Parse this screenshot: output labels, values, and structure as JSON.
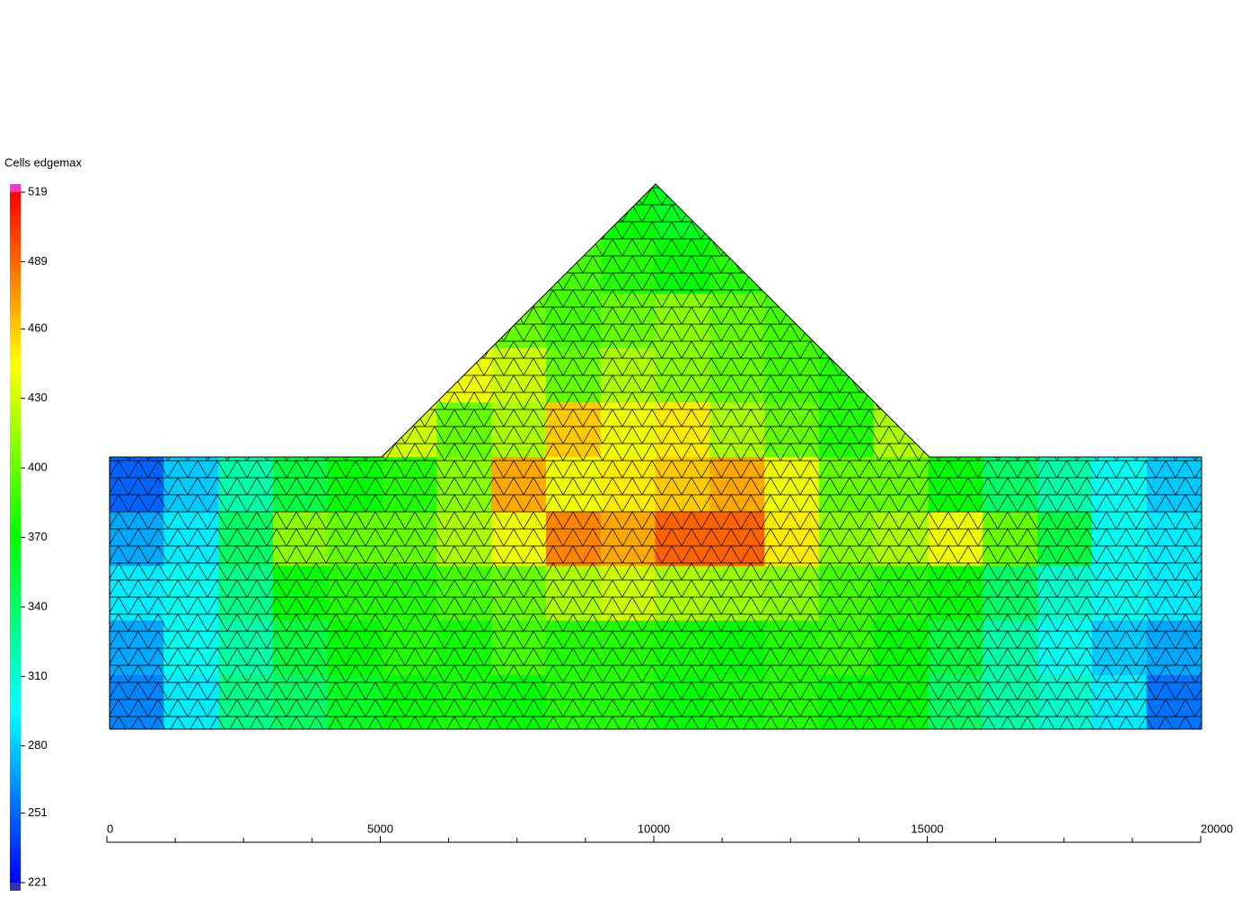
{
  "chart_data": {
    "type": "mesh-field",
    "colorbar_title": "Cells edgemax",
    "clim": [
      221,
      519
    ],
    "colorbar_ticks": [
      221,
      251,
      280,
      310,
      340,
      370,
      400,
      430,
      460,
      489,
      519
    ],
    "xlim": [
      0,
      20000
    ],
    "xticks": [
      0,
      5000,
      10000,
      15000,
      20000
    ],
    "xminorticks": [
      1250,
      2500,
      3750,
      6250,
      7500,
      8750,
      11250,
      12500,
      13750,
      16250,
      17500,
      18750
    ],
    "grid_values": [
      [
        260,
        290,
        330,
        340,
        360,
        370,
        375,
        370,
        380,
        380,
        370,
        375,
        380,
        370,
        370,
        340,
        320,
        310,
        290,
        255
      ],
      [
        270,
        300,
        320,
        350,
        370,
        380,
        375,
        390,
        380,
        380,
        375,
        370,
        380,
        385,
        370,
        350,
        320,
        300,
        280,
        270
      ],
      [
        290,
        300,
        330,
        370,
        380,
        380,
        390,
        400,
        420,
        430,
        420,
        415,
        410,
        390,
        380,
        370,
        340,
        310,
        300,
        290
      ],
      [
        270,
        290,
        340,
        410,
        400,
        400,
        420,
        440,
        480,
        470,
        490,
        490,
        450,
        410,
        420,
        440,
        400,
        350,
        300,
        290
      ],
      [
        250,
        280,
        320,
        350,
        370,
        380,
        410,
        470,
        440,
        450,
        460,
        470,
        440,
        400,
        400,
        370,
        340,
        320,
        300,
        280
      ],
      [
        null,
        null,
        null,
        null,
        null,
        430,
        400,
        420,
        460,
        440,
        450,
        420,
        400,
        380,
        420,
        null,
        null,
        null,
        null,
        null
      ],
      [
        null,
        null,
        null,
        null,
        null,
        null,
        440,
        430,
        400,
        420,
        410,
        400,
        390,
        380,
        null,
        null,
        null,
        null,
        null,
        null
      ],
      [
        null,
        null,
        null,
        null,
        null,
        null,
        null,
        400,
        390,
        400,
        410,
        400,
        390,
        null,
        null,
        null,
        null,
        null,
        null,
        null
      ],
      [
        null,
        null,
        null,
        null,
        null,
        null,
        null,
        null,
        390,
        380,
        370,
        380,
        null,
        null,
        null,
        null,
        null,
        null,
        null,
        null
      ],
      [
        null,
        null,
        null,
        null,
        null,
        null,
        null,
        null,
        null,
        370,
        360,
        null,
        null,
        null,
        null,
        null,
        null,
        null,
        null,
        null
      ]
    ]
  }
}
